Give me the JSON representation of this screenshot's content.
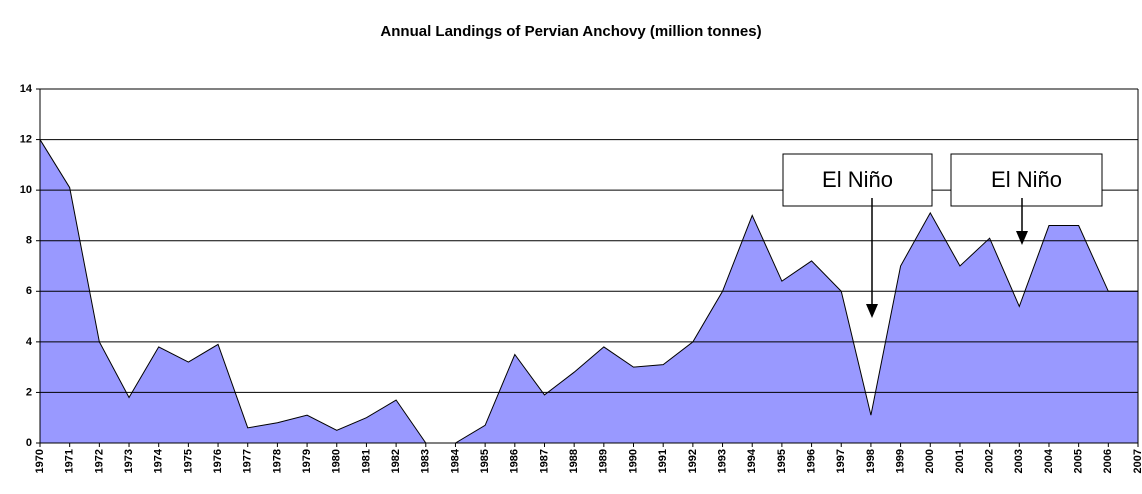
{
  "chart_data": {
    "type": "area",
    "title": "Annual Landings of Pervian Anchovy (million tonnes)",
    "categories": [
      "1970",
      "1971",
      "1972",
      "1973",
      "1974",
      "1975",
      "1976",
      "1977",
      "1978",
      "1979",
      "1980",
      "1981",
      "1982",
      "1983",
      "1984",
      "1985",
      "1986",
      "1987",
      "1988",
      "1989",
      "1990",
      "1991",
      "1992",
      "1993",
      "1994",
      "1995",
      "1996",
      "1997",
      "1998",
      "1999",
      "2000",
      "2001",
      "2002",
      "2003",
      "2004",
      "2005",
      "2006",
      "2007"
    ],
    "values": [
      12,
      10.1,
      4.0,
      1.8,
      3.8,
      3.2,
      3.9,
      0.6,
      0.8,
      1.1,
      0.5,
      1.0,
      1.7,
      0,
      0,
      0.7,
      3.5,
      1.9,
      2.8,
      3.8,
      3.0,
      3.1,
      4.0,
      6.0,
      9.0,
      6.4,
      7.2,
      6.0,
      1.1,
      7.0,
      9.1,
      7.0,
      8.1,
      5.4,
      8.6,
      8.6,
      6.0,
      6.0
    ],
    "color": "#9999ff",
    "ylim": [
      0,
      14
    ],
    "yticks": [
      0,
      2,
      4,
      6,
      8,
      10,
      12,
      14
    ],
    "grid": true,
    "annotations": [
      "El Niño",
      "El Niño"
    ]
  }
}
